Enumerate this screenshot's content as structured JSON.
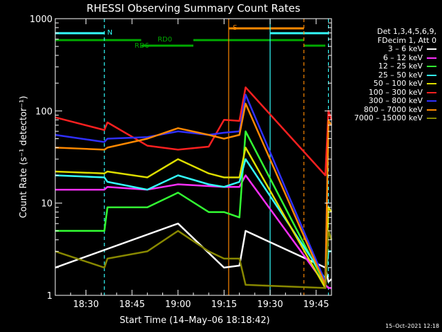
{
  "chart_data": {
    "type": "line",
    "title": "RHESSI Observing Summary Count Rates",
    "xlabel": "Start Time (14–May–06 18:18:42)",
    "ylabel": "Count Rate (s⁻¹ detector⁻¹)",
    "yscale": "log",
    "ylim": [
      1,
      1000
    ],
    "xlim_minutes": [
      0,
      90
    ],
    "x_ticks": [
      {
        "minute": 10,
        "label": "18:30"
      },
      {
        "minute": 25,
        "label": "18:45"
      },
      {
        "minute": 40,
        "label": "19:00"
      },
      {
        "minute": 55,
        "label": "19:15"
      },
      {
        "minute": 70,
        "label": "19:30"
      },
      {
        "minute": 85,
        "label": "19:45"
      }
    ],
    "y_ticks": [
      {
        "value": 1,
        "label": "1"
      },
      {
        "value": 10,
        "label": "10"
      },
      {
        "value": 100,
        "label": "100"
      },
      {
        "value": 1000,
        "label": "1000"
      }
    ],
    "legend_placement": "right",
    "legend_header": [
      "Det 1,3,4,5,6,9,",
      "FDecim 1, Att 0"
    ],
    "series": [
      {
        "name": "3 – 6 keV",
        "color": "#ffffff",
        "x": [
          0,
          40,
          55,
          60,
          62,
          88,
          89,
          90
        ],
        "y": [
          2.0,
          6.0,
          2.0,
          2.1,
          5,
          2.0,
          1.4,
          1.5
        ]
      },
      {
        "name": "6 – 12 keV",
        "color": "#ff30ff",
        "x": [
          0,
          16,
          17,
          30,
          40,
          55,
          60,
          62,
          88,
          89,
          90
        ],
        "y": [
          14,
          14,
          15,
          14,
          16,
          15,
          15,
          20,
          1.3,
          1.2,
          1.2
        ]
      },
      {
        "name": "12 – 25 keV",
        "color": "#33ff33",
        "x": [
          0,
          16,
          17,
          30,
          40,
          50,
          55,
          60,
          62,
          88,
          89,
          90
        ],
        "y": [
          5,
          5,
          9,
          9,
          13,
          8,
          8,
          7,
          60,
          1.3,
          5,
          4
        ]
      },
      {
        "name": "25 – 50 keV",
        "color": "#33ffff",
        "x": [
          0,
          16,
          17,
          30,
          40,
          50,
          55,
          60,
          62,
          88,
          89,
          90
        ],
        "y": [
          20,
          19,
          17,
          14,
          20,
          16,
          15,
          17,
          30,
          1.5,
          3,
          3
        ]
      },
      {
        "name": "50 – 100 keV",
        "color": "#dddd00",
        "x": [
          0,
          16,
          17,
          30,
          40,
          50,
          55,
          60,
          62,
          88,
          89,
          90
        ],
        "y": [
          22,
          21,
          22,
          19,
          30,
          21,
          19,
          19,
          40,
          1.2,
          9,
          8
        ]
      },
      {
        "name": "100 – 300 keV",
        "color": "#ff2020",
        "x": [
          0,
          16,
          17,
          30,
          40,
          50,
          55,
          60,
          62,
          88,
          89,
          90
        ],
        "y": [
          85,
          62,
          75,
          42,
          38,
          41,
          80,
          78,
          180,
          20,
          100,
          80
        ]
      },
      {
        "name": "300 – 800 keV",
        "color": "#3030ff",
        "x": [
          0,
          16,
          17,
          30,
          40,
          50,
          55,
          60,
          62,
          88,
          89,
          90
        ],
        "y": [
          55,
          46,
          50,
          52,
          60,
          55,
          58,
          60,
          150,
          1.4,
          75,
          70
        ]
      },
      {
        "name": "800 – 7000 keV",
        "color": "#ff8800",
        "x": [
          0,
          16,
          17,
          30,
          40,
          50,
          55,
          60,
          62,
          88,
          89,
          90
        ],
        "y": [
          40,
          38,
          40,
          50,
          65,
          55,
          50,
          55,
          120,
          1.3,
          78,
          70
        ]
      },
      {
        "name": "7000 – 15000 keV",
        "color": "#888800",
        "x": [
          0,
          16,
          17,
          30,
          40,
          50,
          55,
          60,
          62,
          88,
          89,
          90
        ],
        "y": [
          3,
          2,
          2.5,
          3,
          5,
          3,
          2.5,
          2.5,
          1.3,
          1.2,
          5,
          4
        ]
      }
    ],
    "annotations": [
      {
        "label": "N",
        "color": "#33ffff",
        "minute": 15.6
      },
      {
        "label": "S",
        "color": "#ff8800",
        "minute": 56.5
      },
      {
        "label": "RD0",
        "color": "#00aa00",
        "minute": 32
      },
      {
        "label": "RD6",
        "color": "#00aa00",
        "minute": 24.5
      }
    ],
    "flag_bars": [
      {
        "name": "N-flag",
        "color": "#33ffff",
        "start": 0,
        "end": 16,
        "level": 1
      },
      {
        "name": "N-flag-2",
        "color": "#33ffff",
        "start": 70,
        "end": 89,
        "level": 1
      },
      {
        "name": "S-flag",
        "color": "#ff8800",
        "start": 56.5,
        "end": 81,
        "level": 0
      },
      {
        "name": "RD0-flag",
        "color": "#00aa00",
        "start": 0,
        "end": 28,
        "level": 2
      },
      {
        "name": "RD0-flag-2",
        "color": "#00aa00",
        "start": 45,
        "end": 81,
        "level": 2
      },
      {
        "name": "RD6-flag",
        "color": "#00aa00",
        "start": 28,
        "end": 45,
        "level": 3
      },
      {
        "name": "RD6-flag-2",
        "color": "#00aa00",
        "start": 81,
        "end": 88,
        "level": 3
      }
    ],
    "vertical_lines": [
      {
        "color": "#33ffff",
        "minute": 16,
        "dash": true
      },
      {
        "color": "#ff8800",
        "minute": 56.5,
        "dash": false
      },
      {
        "color": "#33ffff",
        "minute": 70,
        "dash": false
      },
      {
        "color": "#ff8800",
        "minute": 81,
        "dash": true
      },
      {
        "color": "#33ffff",
        "minute": 89,
        "dash": true
      }
    ]
  },
  "timestamp": "15–Oct–2021 12:18"
}
